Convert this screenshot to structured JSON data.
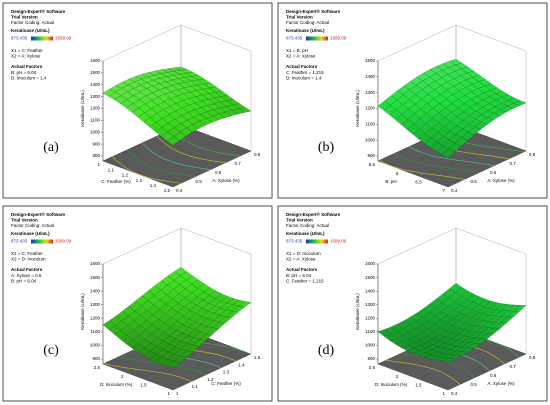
{
  "panels": [
    {
      "label": "(a)",
      "header": [
        "Design-Expert® Software",
        "Trial Version",
        "Factor Coding: Actual"
      ],
      "response": "Keratinase (U/mL)",
      "range_low": "873.435",
      "range_high": "1589.09",
      "factors": [
        "X1 = C: Feather",
        "X2 = A: Xylose"
      ],
      "actual_title": "Actual Factors",
      "actual": [
        "B: pH = 6.04",
        "D: Inoculum = 1.4"
      ],
      "z_title": "Keratinase (U/mL)",
      "z_ticks": [
        1600,
        1500,
        1400,
        1300,
        1200,
        1100,
        1000,
        900,
        800
      ],
      "left_title": "C: Feather (%)",
      "left_ticks": [
        1,
        1.1,
        1.2,
        1.3,
        1.4,
        1.5
      ],
      "right_title": "A: Xylose (%)",
      "right_ticks": [
        0.4,
        0.5,
        0.6,
        0.7,
        0.8
      ]
    },
    {
      "label": "(b)",
      "header": [
        "Design-Expert® Software",
        "Trial Version",
        "Factor Coding: Actual"
      ],
      "response": "Keratinase (U/mL)",
      "range_low": "873.435",
      "range_high": "1589.09",
      "factors": [
        "X1 = B: pH",
        "X2 = A: Xylose"
      ],
      "actual_title": "Actual Factors",
      "actual": [
        "C: Feather = 1.215",
        "D: Inoculum = 1.4"
      ],
      "z_title": "Keratinase (U/mL)",
      "z_ticks": [
        1500,
        1400,
        1300,
        1200,
        1100,
        1000,
        900
      ],
      "left_title": "B: pH",
      "left_ticks": [
        5.5,
        6,
        6.5,
        7
      ],
      "right_title": "A: Xylose (%)",
      "right_ticks": [
        0.4,
        0.5,
        0.6,
        0.7,
        0.8
      ]
    },
    {
      "label": "(c)",
      "header": [
        "Design-Expert® Software",
        "Trial Version",
        "Factor Coding: Actual"
      ],
      "response": "Keratinase (U/mL)",
      "range_low": "873.435",
      "range_high": "1589.09",
      "factors": [
        "X1 = C: Feather",
        "X2 = D: Inoculum"
      ],
      "actual_title": "Actual Factors",
      "actual": [
        "A: Xylose = 0.6",
        "B: pH = 6.04"
      ],
      "z_title": "Keratinase (U/mL)",
      "z_ticks": [
        1600,
        1500,
        1400,
        1300,
        1200,
        1100,
        1000,
        900
      ],
      "left_title": "D: Inoculum (%)",
      "left_ticks": [
        2.5,
        2,
        1.5,
        1
      ],
      "right_title": "C: Feather (%)",
      "right_ticks": [
        1,
        1.1,
        1.2,
        1.3,
        1.4,
        1.5
      ]
    },
    {
      "label": "(d)",
      "header": [
        "Design-Expert® Software",
        "Trial Version",
        "Factor Coding: Actual"
      ],
      "response": "Keratinase (U/mL)",
      "range_low": "873.435",
      "range_high": "1589.09",
      "factors": [
        "X1 = D: Inoculum",
        "X2 = A: Xylose"
      ],
      "actual_title": "Actual Factors",
      "actual": [
        "B: pH = 6.04",
        "C: Feather = 1.215"
      ],
      "z_title": "Keratinase (U/mL)",
      "z_ticks": [
        1600,
        1500,
        1400,
        1300,
        1200,
        1100,
        1000,
        900
      ],
      "left_title": "D: Inoculum (%)",
      "left_ticks": [
        2.5,
        2,
        1.5,
        1
      ],
      "right_title": "A: Xylose (%)",
      "right_ticks": [
        0.4,
        0.5,
        0.6,
        0.7,
        0.8
      ]
    }
  ]
}
